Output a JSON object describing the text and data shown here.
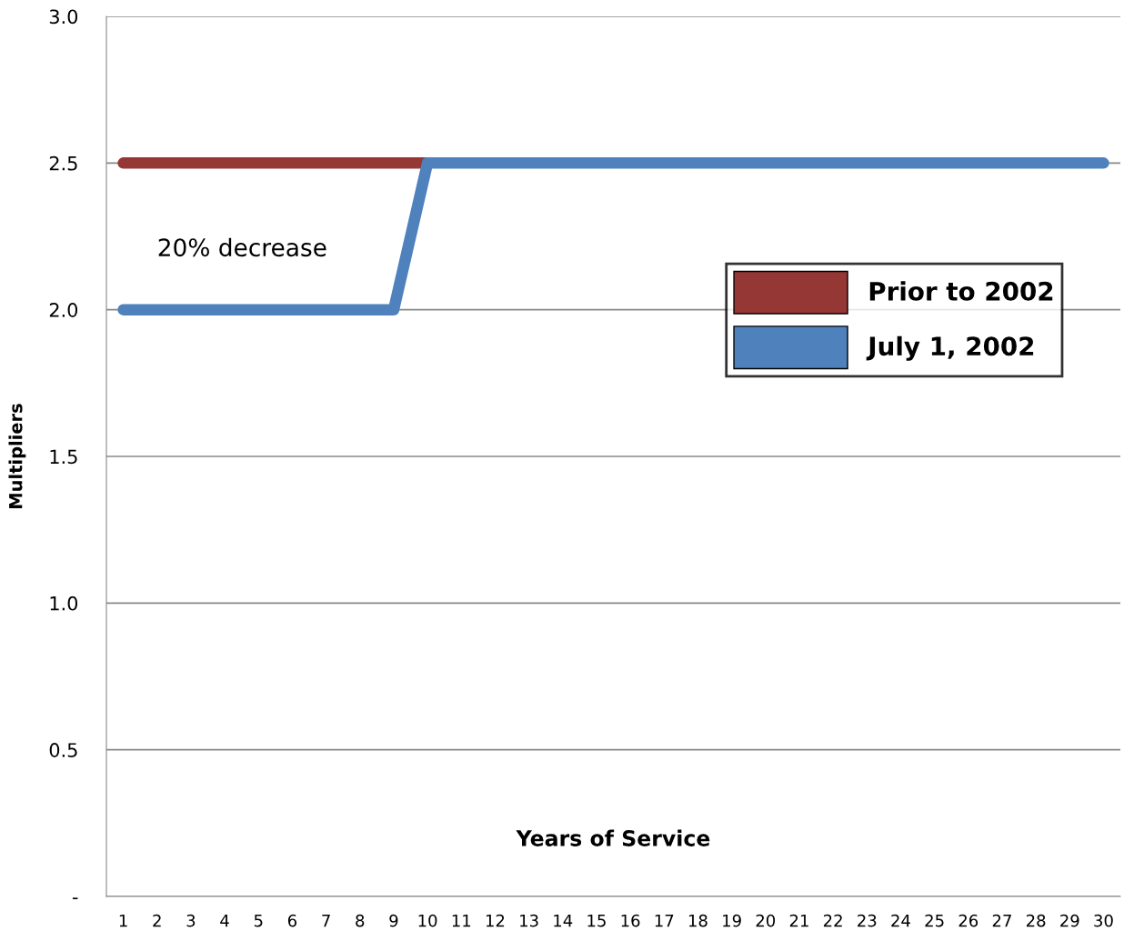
{
  "chart_data": {
    "type": "line",
    "ylabel": "Multipliers",
    "xlabel": "Years of Service",
    "categories": [
      "1",
      "2",
      "3",
      "4",
      "5",
      "6",
      "7",
      "8",
      "9",
      "10",
      "11",
      "12",
      "13",
      "14",
      "15",
      "16",
      "17",
      "18",
      "19",
      "20",
      "21",
      "22",
      "23",
      "24",
      "25",
      "26",
      "27",
      "28",
      "29",
      "30"
    ],
    "series": [
      {
        "name": "Prior to 2002",
        "color": "#953735",
        "values": [
          2.5,
          2.5,
          2.5,
          2.5,
          2.5,
          2.5,
          2.5,
          2.5,
          2.5,
          2.5,
          null,
          null,
          null,
          null,
          null,
          null,
          null,
          null,
          null,
          null,
          null,
          null,
          null,
          null,
          null,
          null,
          null,
          null,
          null,
          null
        ]
      },
      {
        "name": "July 1, 2002",
        "color": "#4f81bd",
        "values": [
          2.0,
          2.0,
          2.0,
          2.0,
          2.0,
          2.0,
          2.0,
          2.0,
          2.0,
          2.5,
          2.5,
          2.5,
          2.5,
          2.5,
          2.5,
          2.5,
          2.5,
          2.5,
          2.5,
          2.5,
          2.5,
          2.5,
          2.5,
          2.5,
          2.5,
          2.5,
          2.5,
          2.5,
          2.5,
          2.5
        ]
      }
    ],
    "ylim": [
      0,
      3
    ],
    "yticks": [
      {
        "value": 0,
        "label": "-"
      },
      {
        "value": 0.5,
        "label": "0.5"
      },
      {
        "value": 1,
        "label": "1.0"
      },
      {
        "value": 1.5,
        "label": "1.5"
      },
      {
        "value": 2,
        "label": "2.0"
      },
      {
        "value": 2.5,
        "label": "2.5"
      },
      {
        "value": 3,
        "label": "3.0"
      }
    ],
    "grid": "y",
    "legend": "right",
    "line_style": "solid",
    "annotations": [
      "20% decrease"
    ]
  }
}
